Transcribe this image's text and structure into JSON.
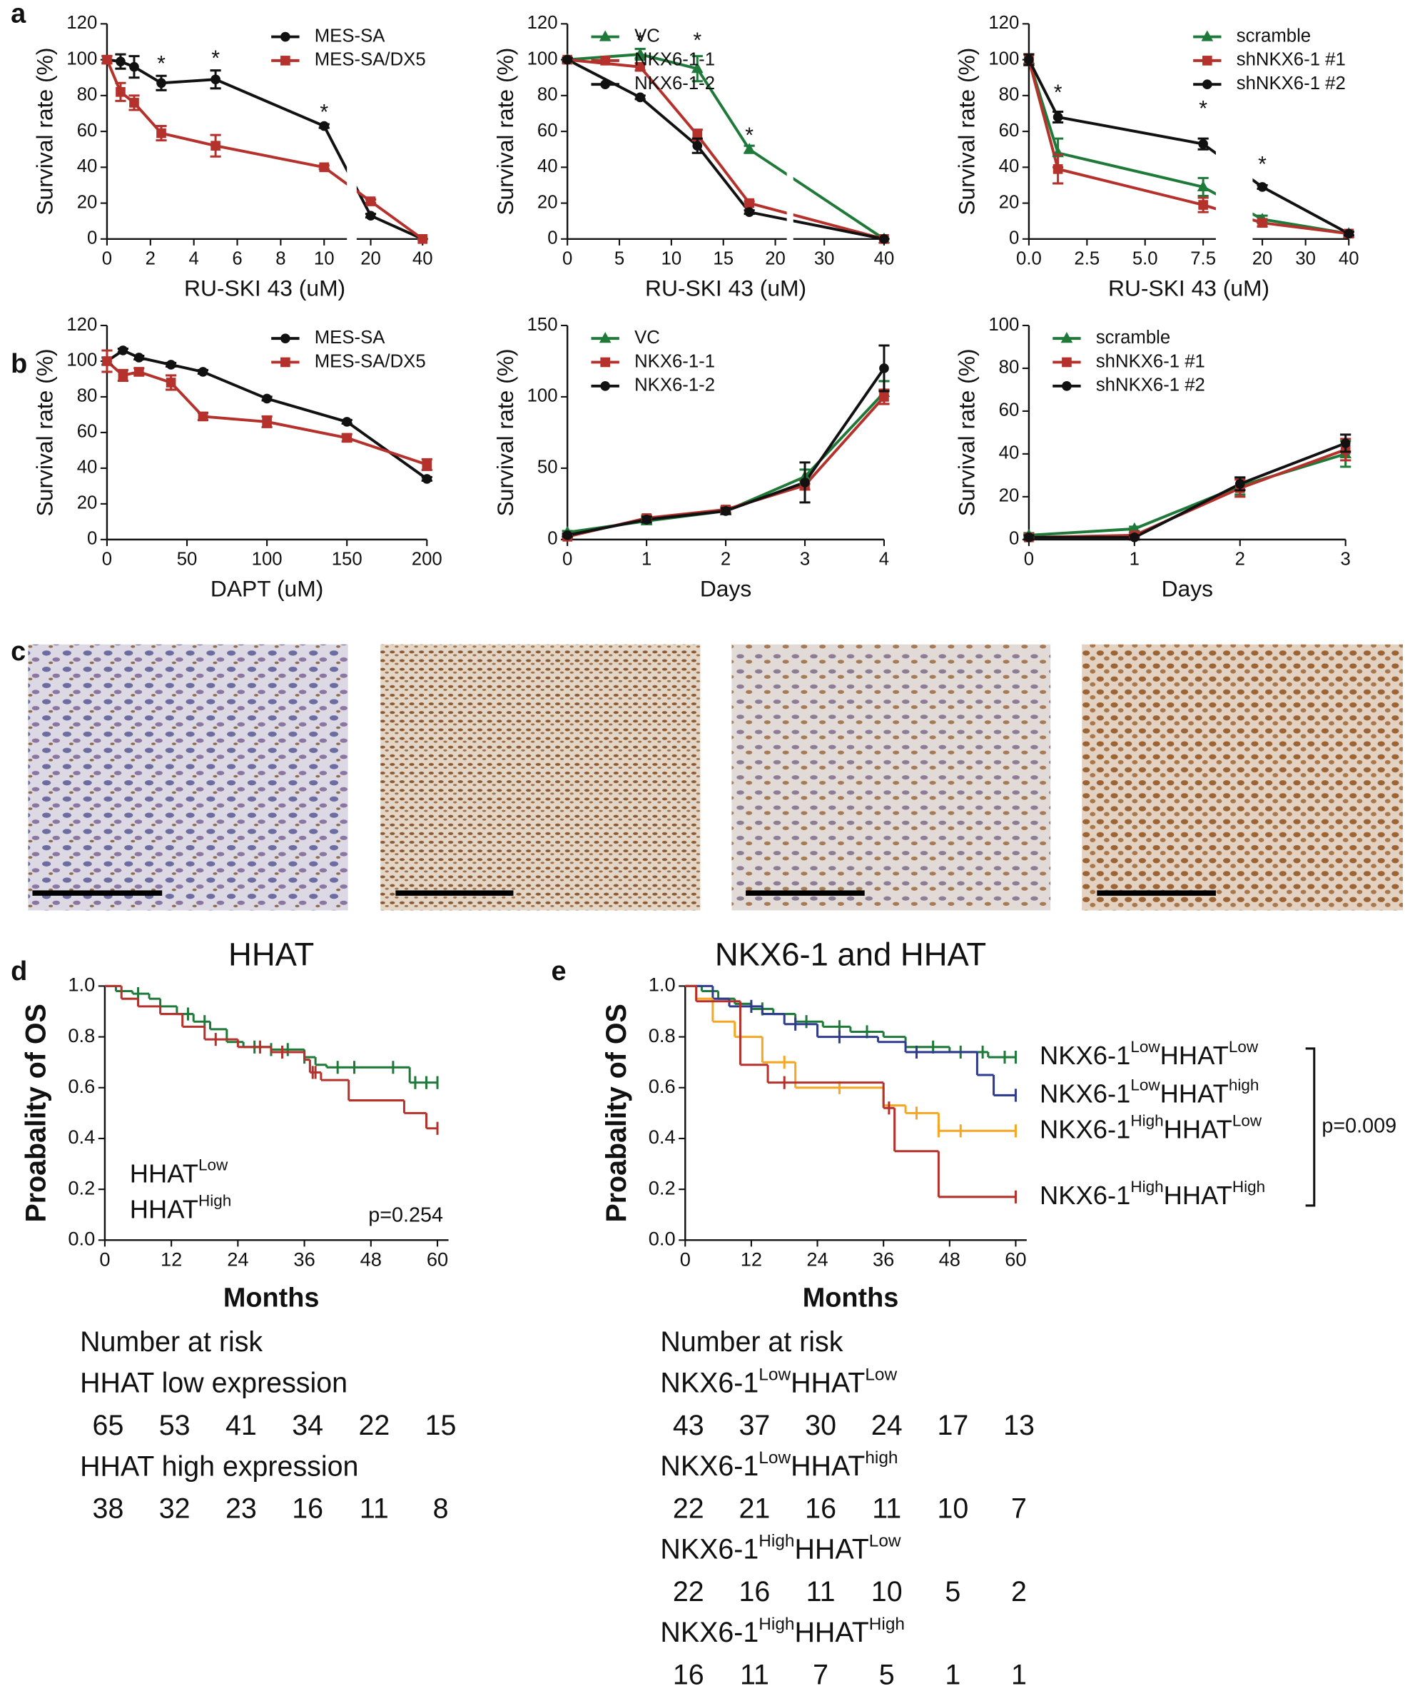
{
  "panel_labels": [
    "a",
    "b",
    "c",
    "d",
    "e"
  ],
  "chart_data": [
    {
      "type": "line",
      "x_label": "RU-SKI 43 (uM)",
      "y_label": "Survival rate (%)",
      "xlim": [
        0,
        40
      ],
      "xsegments": [
        [
          0,
          11
        ],
        [
          15,
          40
        ]
      ],
      "xticks": [
        0,
        2,
        4,
        6,
        8,
        10,
        20,
        40
      ],
      "ylim": [
        0,
        120
      ],
      "yticks": [
        0,
        20,
        40,
        60,
        80,
        100,
        120
      ],
      "legend": "upper right",
      "x": [
        0,
        0.625,
        1.25,
        2.5,
        5,
        10,
        20,
        40
      ],
      "series": [
        {
          "name": "MES-SA",
          "color": "#111111",
          "marker": "circle",
          "values": [
            100,
            99,
            96,
            87,
            89,
            63,
            13,
            0
          ],
          "errors": [
            2,
            4,
            6,
            4,
            5,
            1,
            1,
            0
          ]
        },
        {
          "name": "MES-SA/DX5",
          "color": "#b5312c",
          "marker": "square",
          "values": [
            100,
            82,
            76,
            59,
            52,
            40,
            21,
            0
          ],
          "errors": [
            2,
            5,
            4,
            4,
            6,
            1,
            1,
            0
          ]
        }
      ],
      "annotations": [
        {
          "text": "*",
          "x": 2.5,
          "y": 97
        },
        {
          "text": "*",
          "x": 5,
          "y": 100
        },
        {
          "text": "*",
          "x": 10,
          "y": 70
        }
      ]
    },
    {
      "type": "line",
      "x_label": "RU-SKI 43 (uM)",
      "y_label": "Survival rate (%)",
      "xlim": [
        0,
        40
      ],
      "xsegments": [
        [
          0,
          21
        ],
        [
          25,
          40
        ]
      ],
      "xticks": [
        0,
        5,
        10,
        15,
        20,
        30,
        40
      ],
      "ylim": [
        0,
        120
      ],
      "yticks": [
        0,
        20,
        40,
        60,
        80,
        100,
        120
      ],
      "legend": "upper left",
      "x": [
        0,
        7,
        12.5,
        17.5,
        40
      ],
      "series": [
        {
          "name": "VC",
          "color": "#1f7a3a",
          "marker": "triangle",
          "values": [
            100,
            103,
            95,
            50,
            0
          ],
          "errors": [
            1,
            3,
            7,
            2,
            0
          ]
        },
        {
          "name": "NKX6-1-1",
          "color": "#b5312c",
          "marker": "square",
          "values": [
            100,
            96,
            58,
            20,
            0
          ],
          "errors": [
            1,
            2,
            3,
            1,
            0
          ]
        },
        {
          "name": "NKX6-1-2",
          "color": "#111111",
          "marker": "circle",
          "values": [
            100,
            79,
            52,
            15,
            0
          ],
          "errors": [
            1,
            1,
            4,
            1,
            0
          ]
        }
      ],
      "annotations": [
        {
          "text": "*",
          "x": 7,
          "y": 110
        },
        {
          "text": "*",
          "x": 12.5,
          "y": 110
        },
        {
          "text": "*",
          "x": 17.5,
          "y": 57
        }
      ]
    },
    {
      "type": "line",
      "x_label": "RU-SKI 43 (uM)",
      "y_label": "Survival rate (%)",
      "xlim": [
        0,
        40
      ],
      "xsegments": [
        [
          0,
          8
        ],
        [
          18,
          40
        ]
      ],
      "xticks": [
        {
          "value": 0,
          "label": "0.0"
        },
        {
          "value": 2.5,
          "label": "2.5"
        },
        {
          "value": 5,
          "label": "5.0"
        },
        {
          "value": 7.5,
          "label": "7.5"
        },
        20,
        30,
        40
      ],
      "ylim": [
        0,
        120
      ],
      "yticks": [
        0,
        20,
        40,
        60,
        80,
        100,
        120
      ],
      "legend": "upper right",
      "x": [
        0,
        1.25,
        7.5,
        20,
        40
      ],
      "series": [
        {
          "name": "scramble",
          "color": "#1f7a3a",
          "marker": "triangle",
          "values": [
            100,
            48,
            29,
            11,
            3
          ],
          "errors": [
            3,
            8,
            5,
            2,
            1
          ]
        },
        {
          "name": "shNKX6-1 #1",
          "color": "#b5312c",
          "marker": "square",
          "values": [
            100,
            39,
            19,
            9,
            3
          ],
          "errors": [
            3,
            8,
            4,
            2,
            1
          ]
        },
        {
          "name": "shNKX6-1 #2",
          "color": "#111111",
          "marker": "circle",
          "values": [
            100,
            68,
            53,
            29,
            3
          ],
          "errors": [
            3,
            3,
            3,
            1,
            1
          ]
        }
      ],
      "annotations": [
        {
          "text": "*",
          "x": 1.25,
          "y": 81
        },
        {
          "text": "*",
          "x": 7.5,
          "y": 72
        },
        {
          "text": "*",
          "x": 20,
          "y": 41
        }
      ]
    },
    {
      "type": "line",
      "x_label": "DAPT (uM)",
      "y_label": "Survival rate (%)",
      "xlim": [
        0,
        200
      ],
      "xticks": [
        0,
        50,
        100,
        150,
        200
      ],
      "ylim": [
        0,
        120
      ],
      "yticks": [
        0,
        20,
        40,
        60,
        80,
        100,
        120
      ],
      "legend": "upper right",
      "x": [
        0,
        10,
        20,
        40,
        60,
        100,
        150,
        200
      ],
      "series": [
        {
          "name": "MES-SA",
          "color": "#111111",
          "marker": "circle",
          "values": [
            100,
            106,
            102,
            98,
            94,
            79,
            66,
            34
          ],
          "errors": [
            2,
            1,
            1,
            1,
            1,
            1,
            1,
            1
          ]
        },
        {
          "name": "MES-SA/DX5",
          "color": "#b5312c",
          "marker": "square",
          "values": [
            100,
            92,
            94,
            88,
            69,
            66,
            57,
            42
          ],
          "errors": [
            6,
            3,
            2,
            4,
            2,
            3,
            2,
            3
          ]
        }
      ]
    },
    {
      "type": "line",
      "x_label": "Days",
      "y_label": "Survival rate (%)",
      "xlim": [
        0,
        4
      ],
      "xticks": [
        0,
        1,
        2,
        3,
        4
      ],
      "ylim": [
        0,
        150
      ],
      "yticks": [
        0,
        50,
        100,
        150
      ],
      "legend": "upper left",
      "x": [
        0,
        1,
        2,
        3,
        4
      ],
      "series": [
        {
          "name": "VC",
          "color": "#1f7a3a",
          "marker": "triangle",
          "values": [
            5,
            13,
            20,
            44,
            103
          ],
          "errors": [
            1,
            2,
            2,
            5,
            8
          ]
        },
        {
          "name": "NKX6-1-1",
          "color": "#b5312c",
          "marker": "square",
          "values": [
            2,
            15,
            21,
            38,
            100
          ],
          "errors": [
            1,
            2,
            2,
            3,
            5
          ]
        },
        {
          "name": "NKX6-1-2",
          "color": "#111111",
          "marker": "circle",
          "values": [
            3,
            14,
            20,
            40,
            120
          ],
          "errors": [
            1,
            2,
            2,
            14,
            16
          ]
        }
      ]
    },
    {
      "type": "line",
      "x_label": "Days",
      "y_label": "Survival rate (%)",
      "xlim": [
        0,
        3
      ],
      "xticks": [
        0,
        1,
        2,
        3
      ],
      "ylim": [
        0,
        100
      ],
      "yticks": [
        0,
        20,
        40,
        60,
        80,
        100
      ],
      "legend": "upper left",
      "x": [
        0,
        1,
        2,
        3
      ],
      "series": [
        {
          "name": "scramble",
          "color": "#1f7a3a",
          "marker": "triangle",
          "values": [
            2,
            5,
            25,
            40
          ],
          "errors": [
            1,
            1,
            4,
            6
          ]
        },
        {
          "name": "shNKX6-1 #1",
          "color": "#b5312c",
          "marker": "square",
          "values": [
            1,
            2,
            24,
            42
          ],
          "errors": [
            1,
            1,
            4,
            5
          ]
        },
        {
          "name": "shNKX6-1 #2",
          "color": "#111111",
          "marker": "circle",
          "values": [
            1,
            1,
            26,
            45
          ],
          "errors": [
            1,
            1,
            3,
            4
          ]
        }
      ]
    },
    {
      "type": "km",
      "title": "HHAT",
      "x_label": "Months",
      "y_label": "Proabality of OS",
      "xlim": [
        0,
        62
      ],
      "xticks": [
        0,
        12,
        24,
        36,
        48,
        60
      ],
      "ylim": [
        0,
        1
      ],
      "yticks": [
        {
          "value": 0,
          "label": "0.0"
        },
        {
          "value": 0.2,
          "label": "0.2"
        },
        {
          "value": 0.4,
          "label": "0.4"
        },
        {
          "value": 0.6,
          "label": "0.6"
        },
        {
          "value": 0.8,
          "label": "0.8"
        },
        {
          "value": 1,
          "label": "1.0"
        }
      ],
      "legend": "lower left",
      "annotation": "p=0.254",
      "series": [
        {
          "name": [
            "HHAT",
            "Low"
          ],
          "color": "#1f7a3a",
          "x": [
            0,
            2,
            5,
            8,
            10,
            13,
            16,
            19,
            22,
            25,
            30,
            36,
            38,
            40,
            55,
            60
          ],
          "values": [
            1,
            0.98,
            0.97,
            0.95,
            0.92,
            0.89,
            0.86,
            0.83,
            0.78,
            0.76,
            0.75,
            0.72,
            0.69,
            0.68,
            0.62,
            0.62
          ],
          "censor_x": [
            6,
            15,
            18,
            27,
            30,
            33,
            36,
            42,
            45,
            52,
            56,
            58,
            60
          ]
        },
        {
          "name": [
            "HHAT",
            "High"
          ],
          "color": "#b5312c",
          "x": [
            0,
            3,
            6,
            10,
            14,
            18,
            24,
            30,
            36,
            37,
            39,
            44,
            54,
            58,
            60
          ],
          "values": [
            1,
            0.95,
            0.92,
            0.89,
            0.84,
            0.79,
            0.76,
            0.74,
            0.71,
            0.66,
            0.63,
            0.55,
            0.5,
            0.44,
            0.44
          ],
          "censor_x": [
            20,
            28,
            32,
            37.5,
            38,
            60
          ]
        }
      ],
      "risk_table": {
        "title": "Number at risk",
        "rows": [
          {
            "label": "HHAT low expression",
            "color": "#1f7a3a",
            "counts": [
              65,
              53,
              41,
              34,
              22,
              15
            ]
          },
          {
            "label": "HHAT high expression",
            "color": "#b5312c",
            "counts": [
              38,
              32,
              23,
              16,
              11,
              8
            ]
          }
        ]
      }
    },
    {
      "type": "km",
      "title": "NKX6-1 and HHAT",
      "x_label": "Months",
      "y_label": "Proabality of OS",
      "xlim": [
        0,
        62
      ],
      "xticks": [
        0,
        12,
        24,
        36,
        48,
        60
      ],
      "ylim": [
        0,
        1
      ],
      "yticks": [
        {
          "value": 0,
          "label": "0.0"
        },
        {
          "value": 0.2,
          "label": "0.2"
        },
        {
          "value": 0.4,
          "label": "0.4"
        },
        {
          "value": 0.6,
          "label": "0.6"
        },
        {
          "value": 0.8,
          "label": "0.8"
        },
        {
          "value": 1,
          "label": "1.0"
        }
      ],
      "legend": "right",
      "annotation": "p=0.009",
      "series": [
        {
          "name": [
            "NKX6-1",
            "Low",
            "HHAT",
            "Low"
          ],
          "color": "#1f7a3a",
          "x": [
            0,
            3,
            6,
            9,
            12,
            16,
            20,
            25,
            30,
            36,
            40,
            48,
            55,
            60
          ],
          "values": [
            1,
            0.98,
            0.95,
            0.93,
            0.91,
            0.89,
            0.86,
            0.84,
            0.82,
            0.8,
            0.76,
            0.74,
            0.72,
            0.72
          ],
          "censor_x": [
            14,
            22,
            28,
            33,
            45,
            50,
            54,
            58,
            60
          ]
        },
        {
          "name": [
            "NKX6-1",
            "Low",
            "HHAT",
            "high"
          ],
          "color": "#2f3b8f",
          "x": [
            0,
            5,
            8,
            14,
            18,
            24,
            35,
            40,
            53,
            56,
            60
          ],
          "values": [
            1,
            0.95,
            0.92,
            0.89,
            0.85,
            0.8,
            0.78,
            0.74,
            0.65,
            0.57,
            0.57
          ],
          "censor_x": [
            12,
            20,
            28,
            42,
            60
          ]
        },
        {
          "name": [
            "NKX6-1",
            "High",
            "HHAT",
            "Low"
          ],
          "color": "#f5a623",
          "x": [
            0,
            2,
            5,
            9,
            14,
            20,
            36,
            40,
            46,
            60
          ],
          "values": [
            1,
            0.95,
            0.86,
            0.8,
            0.7,
            0.6,
            0.53,
            0.5,
            0.43,
            0.43
          ],
          "censor_x": [
            18,
            28,
            42,
            46,
            50,
            60
          ]
        },
        {
          "name": [
            "NKX6-1",
            "High",
            "HHAT",
            "High"
          ],
          "color": "#b5312c",
          "x": [
            0,
            2,
            10,
            15,
            36,
            38,
            46,
            60
          ],
          "values": [
            1,
            0.94,
            0.69,
            0.62,
            0.52,
            0.35,
            0.17,
            0.17
          ],
          "censor_x": [
            18,
            37,
            60
          ]
        }
      ],
      "risk_table": {
        "title": "Number at risk",
        "rows": [
          {
            "label": [
              "NKX6-1",
              "Low",
              "HHAT",
              "Low"
            ],
            "color": "#1f7a3a",
            "counts": [
              43,
              37,
              30,
              24,
              17,
              13
            ]
          },
          {
            "label": [
              "NKX6-1",
              "Low",
              "HHAT",
              "high"
            ],
            "color": "#2f3b8f",
            "counts": [
              22,
              21,
              16,
              11,
              10,
              7
            ]
          },
          {
            "label": [
              "NKX6-1",
              "High",
              "HHAT",
              "Low"
            ],
            "color": "#f5a623",
            "counts": [
              22,
              16,
              11,
              10,
              5,
              2
            ]
          },
          {
            "label": [
              "NKX6-1",
              "High",
              "HHAT",
              "High"
            ],
            "color": "#b5312c",
            "counts": [
              16,
              11,
              7,
              5,
              1,
              1
            ]
          }
        ]
      }
    }
  ]
}
